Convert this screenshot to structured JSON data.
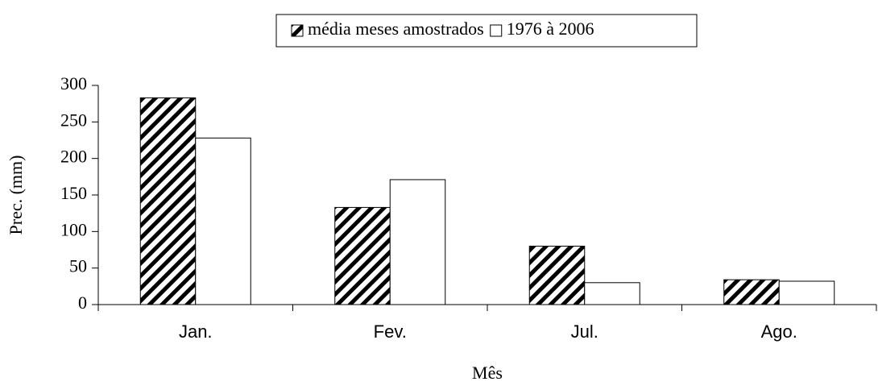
{
  "chart_data": {
    "type": "bar",
    "categories": [
      "Jan.",
      "Fev.",
      "Jul.",
      "Ago."
    ],
    "series": [
      {
        "name": "média meses amostrados",
        "color": "#000000",
        "pattern": "hatch",
        "values": [
          283,
          133,
          80,
          34
        ]
      },
      {
        "name": "1976 à 2006",
        "color": "#ffffff",
        "values": [
          228,
          171,
          30,
          32
        ]
      }
    ],
    "xlabel": "Mês",
    "ylabel": "Prec. (mm)",
    "ylim": [
      0,
      300
    ],
    "yticks": [
      0,
      50,
      100,
      150,
      200,
      250,
      300
    ],
    "grid": false,
    "legend": "top"
  }
}
